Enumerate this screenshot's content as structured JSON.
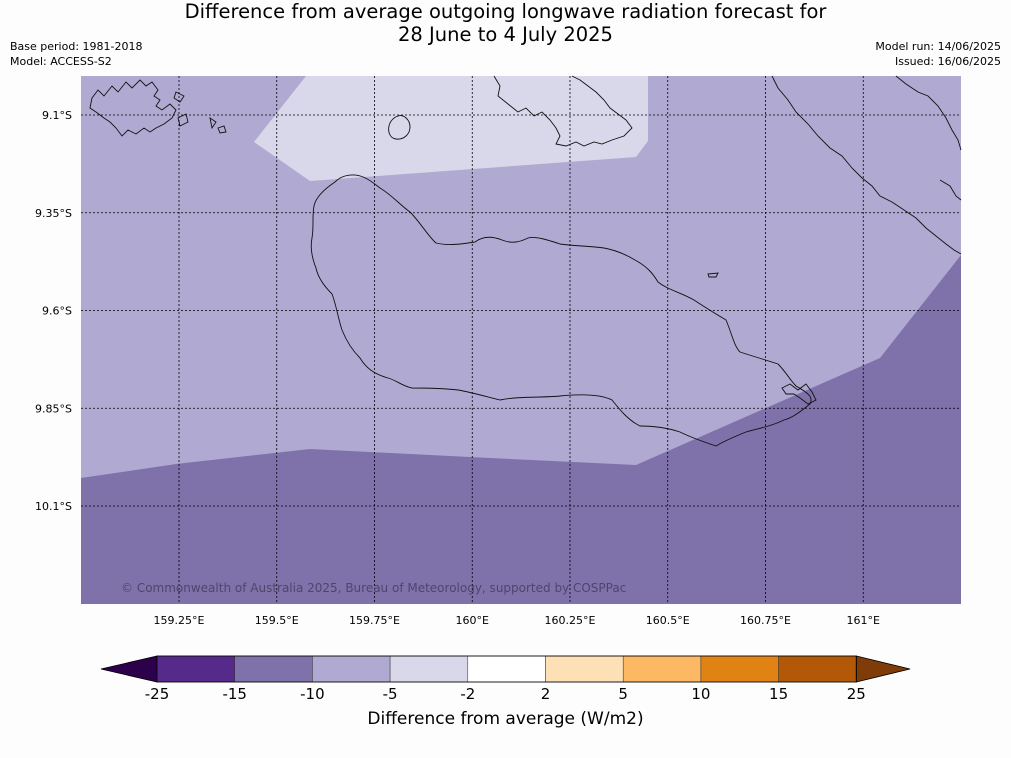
{
  "title": {
    "line1": "Difference from average outgoing longwave radiation forecast for",
    "line2": "28 June to 4 July 2025"
  },
  "meta_left": {
    "base_period": "Base period: 1981-2018",
    "model": "Model: ACCESS-S2"
  },
  "meta_right": {
    "model_run": "Model run: 14/06/2025",
    "issued": "Issued: 16/06/2025"
  },
  "map": {
    "lat_labels": [
      "9.1°S",
      "9.35°S",
      "9.6°S",
      "9.85°S",
      "10.1°S"
    ],
    "lon_labels": [
      "159.25°E",
      "159.5°E",
      "159.75°E",
      "160°E",
      "160.25°E",
      "160.5°E",
      "160.75°E",
      "161°E"
    ],
    "copyright": "© Commonwealth of Australia 2025, Bureau of Meteorology, supported by COSPPac",
    "regions": [
      {
        "name": "weak-negative-band",
        "range": "-5 to -2",
        "color": "#d8d8ea"
      },
      {
        "name": "moderate-negative",
        "range": "-10 to -5",
        "color": "#b0aad2"
      },
      {
        "name": "strong-negative",
        "range": "-15 to -10",
        "color": "#7f72ab"
      }
    ]
  },
  "colorbar": {
    "ticks": [
      "-25",
      "-15",
      "-10",
      "-5",
      "-2",
      "2",
      "5",
      "10",
      "15",
      "25"
    ],
    "colors": [
      "#552a8b",
      "#7f72ab",
      "#b0aad2",
      "#d8d8ea",
      "#ffffff",
      "#fee0b6",
      "#fdb863",
      "#e08214",
      "#b35806"
    ],
    "under_color": "#2d004b",
    "over_color": "#7f3b08",
    "label": "Difference from average (W/m2)"
  }
}
